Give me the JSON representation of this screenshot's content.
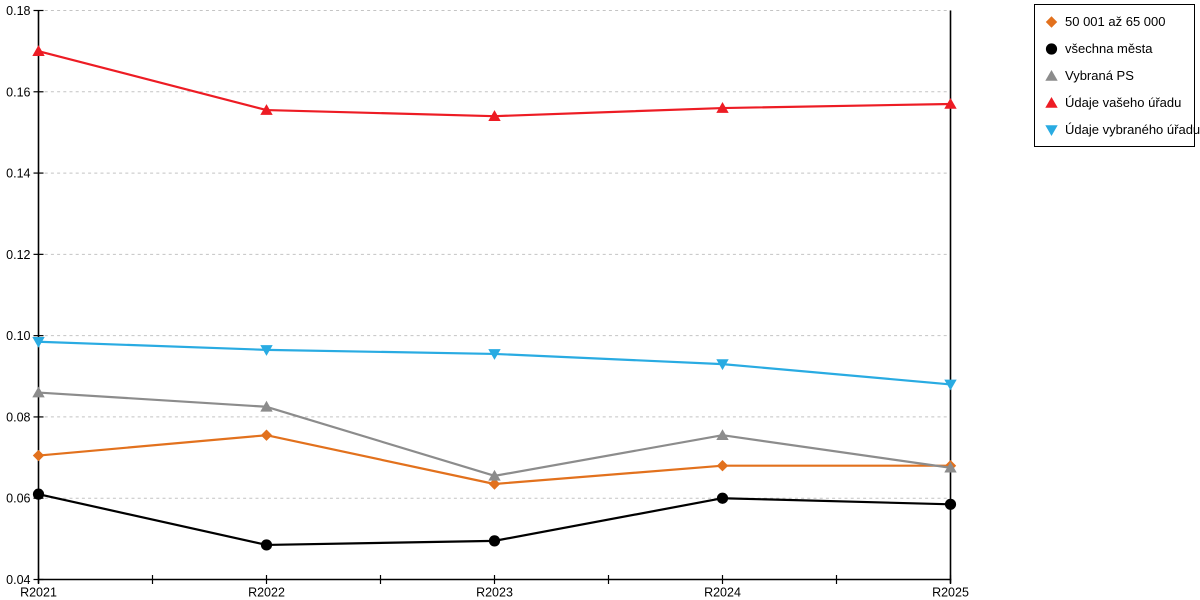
{
  "chart_data": {
    "type": "line",
    "categories": [
      "R2021",
      "R2022",
      "R2023",
      "R2024",
      "R2025"
    ],
    "series": [
      {
        "name": "50 001 až 65 000",
        "color": "#E2711D",
        "marker": "diamond",
        "values": [
          0.0705,
          0.0755,
          0.0635,
          0.068,
          0.068
        ]
      },
      {
        "name": "všechna města",
        "color": "#000000",
        "marker": "circle",
        "values": [
          0.061,
          0.0485,
          0.0495,
          0.06,
          0.0585
        ]
      },
      {
        "name": "Vybraná PS",
        "color": "#8C8C8C",
        "marker": "triangle-up",
        "values": [
          0.086,
          0.0825,
          0.0655,
          0.0755,
          0.0675
        ]
      },
      {
        "name": "Údaje vašeho úřadu",
        "color": "#ED1C24",
        "marker": "triangle-up",
        "values": [
          0.17,
          0.1555,
          0.154,
          0.156,
          0.157
        ]
      },
      {
        "name": "Údaje vybraného úřadu",
        "color": "#29ABE2",
        "marker": "triangle-down",
        "values": [
          0.0985,
          0.0965,
          0.0955,
          0.093,
          0.088
        ]
      }
    ],
    "title": "",
    "xlabel": "",
    "ylabel": "",
    "ylim": [
      0.04,
      0.18
    ],
    "ytick_step": 0.02,
    "ytick_labels": [
      "0.04",
      "0.06",
      "0.08",
      "0.10",
      "0.12",
      "0.14",
      "0.16",
      "0.18"
    ],
    "grid": true,
    "grid_style": "dashed",
    "legend_position": "outside-top-right"
  },
  "colors": {
    "background": "#FFFFFF",
    "axis": "#000000",
    "gridline": "#C4C4C4",
    "legend_border": "#000000",
    "tick_text": "#000000"
  }
}
